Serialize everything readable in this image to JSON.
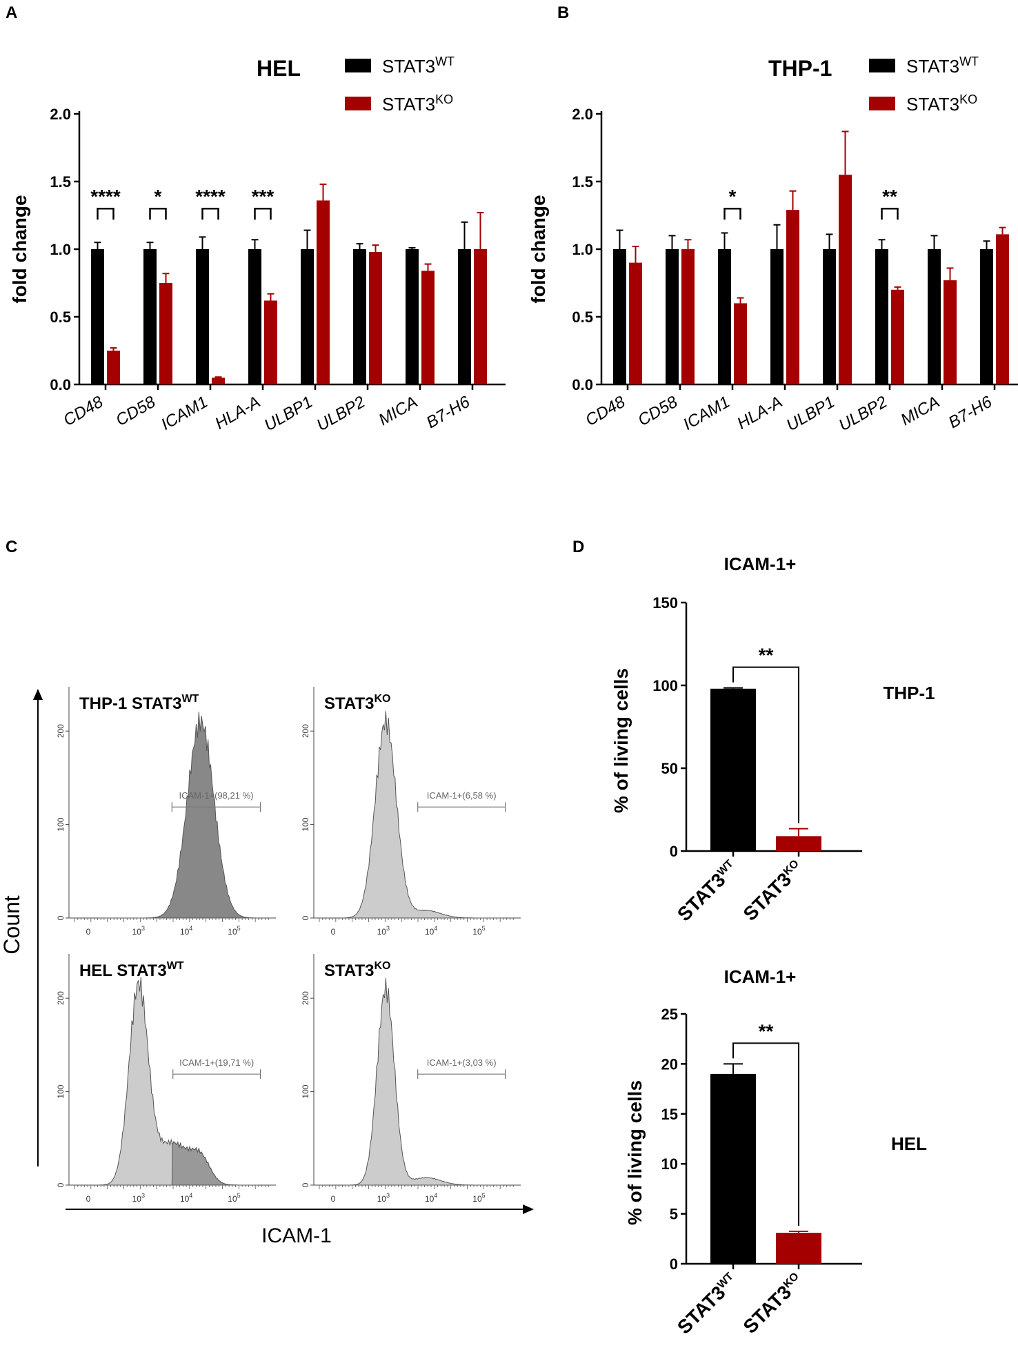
{
  "panels": {
    "A": "A",
    "B": "B",
    "C": "C",
    "D": "D"
  },
  "colors": {
    "wt": "#000000",
    "ko": "#a50000",
    "hist_dark": "#888888",
    "hist_light": "#cccccc"
  },
  "chart_data": [
    {
      "id": "A",
      "type": "bar",
      "title": "HEL",
      "ylabel": "fold change",
      "ylim": [
        0,
        2.0
      ],
      "yticks": [
        "0.0",
        "0.5",
        "1.0",
        "1.5",
        "2.0"
      ],
      "categories": [
        "CD48",
        "CD58",
        "ICAM1",
        "HLA-A",
        "ULBP1",
        "ULBP2",
        "MICA",
        "B7-H6"
      ],
      "series": [
        {
          "name": "STAT3",
          "sup": "WT",
          "values": [
            1.0,
            1.0,
            1.0,
            1.0,
            1.0,
            1.0,
            1.0,
            1.0
          ],
          "errors": [
            0.05,
            0.05,
            0.09,
            0.07,
            0.14,
            0.04,
            0.01,
            0.2
          ]
        },
        {
          "name": "STAT3",
          "sup": "KO",
          "values": [
            0.25,
            0.75,
            0.05,
            0.62,
            1.36,
            0.98,
            0.84,
            1.0
          ],
          "errors": [
            0.02,
            0.07,
            0.005,
            0.05,
            0.12,
            0.05,
            0.05,
            0.27
          ]
        }
      ],
      "significance": [
        {
          "cat": 0,
          "label": "****"
        },
        {
          "cat": 1,
          "label": "*"
        },
        {
          "cat": 2,
          "label": "****"
        },
        {
          "cat": 3,
          "label": "***"
        }
      ]
    },
    {
      "id": "B",
      "type": "bar",
      "title": "THP-1",
      "ylabel": "fold change",
      "ylim": [
        0,
        2.0
      ],
      "yticks": [
        "0.0",
        "0.5",
        "1.0",
        "1.5",
        "2.0"
      ],
      "categories": [
        "CD48",
        "CD58",
        "ICAM1",
        "HLA-A",
        "ULBP1",
        "ULBP2",
        "MICA",
        "B7-H6"
      ],
      "series": [
        {
          "name": "STAT3",
          "sup": "WT",
          "values": [
            1.0,
            1.0,
            1.0,
            1.0,
            1.0,
            1.0,
            1.0,
            1.0
          ],
          "errors": [
            0.14,
            0.1,
            0.12,
            0.18,
            0.11,
            0.07,
            0.1,
            0.06
          ]
        },
        {
          "name": "STAT3",
          "sup": "KO",
          "values": [
            0.9,
            1.0,
            0.6,
            1.29,
            1.55,
            0.7,
            0.77,
            1.11
          ],
          "errors": [
            0.12,
            0.07,
            0.04,
            0.14,
            0.32,
            0.02,
            0.09,
            0.05
          ]
        }
      ],
      "significance": [
        {
          "cat": 2,
          "label": "*"
        },
        {
          "cat": 5,
          "label": "**"
        }
      ]
    },
    {
      "id": "C",
      "type": "histogram",
      "ylabel": "Count",
      "xlabel": "ICAM-1",
      "yticks": [
        "0",
        "100",
        "200"
      ],
      "xticks": [
        "0",
        "10",
        "10",
        "10"
      ],
      "xtick_exps": [
        "",
        "3",
        "4",
        "5"
      ],
      "plots": [
        {
          "title": "THP-1 STAT3",
          "sup": "WT",
          "gate": "ICAM-1+(98,21 %)",
          "center_log": 4.3,
          "width": 0.28,
          "dark": true
        },
        {
          "title": "STAT3",
          "sup": "KO",
          "gate": "ICAM-1+(6,58 %)",
          "center_log": 3.05,
          "width": 0.22,
          "dark": false
        },
        {
          "title": "HEL STAT3",
          "sup": "WT",
          "gate": "ICAM-1+(19,71 %)",
          "center_log": 3.0,
          "width": 0.2,
          "dark": false
        },
        {
          "title": "STAT3",
          "sup": "KO",
          "gate": "ICAM-1+(3,03 %)",
          "center_log": 3.05,
          "width": 0.18,
          "dark": false
        }
      ]
    },
    {
      "id": "D1",
      "type": "bar",
      "title": "ICAM-1+",
      "ylabel": "% of living cells",
      "ylim": [
        0,
        150
      ],
      "yticks": [
        "0",
        "50",
        "100",
        "150"
      ],
      "categories": [
        "STAT3",
        "STAT3"
      ],
      "category_sups": [
        "WT",
        "KO"
      ],
      "values": [
        98,
        9
      ],
      "errors": [
        0.5,
        4.5
      ],
      "significance": "**",
      "side_label": "THP-1"
    },
    {
      "id": "D2",
      "type": "bar",
      "title": "ICAM-1+",
      "ylabel": "% of living cells",
      "ylim": [
        0,
        25
      ],
      "yticks": [
        "0",
        "5",
        "10",
        "15",
        "20",
        "25"
      ],
      "categories": [
        "STAT3",
        "STAT3"
      ],
      "category_sups": [
        "WT",
        "KO"
      ],
      "values": [
        19,
        3.1
      ],
      "errors": [
        1.0,
        0.15
      ],
      "significance": "**",
      "side_label": "HEL"
    }
  ]
}
